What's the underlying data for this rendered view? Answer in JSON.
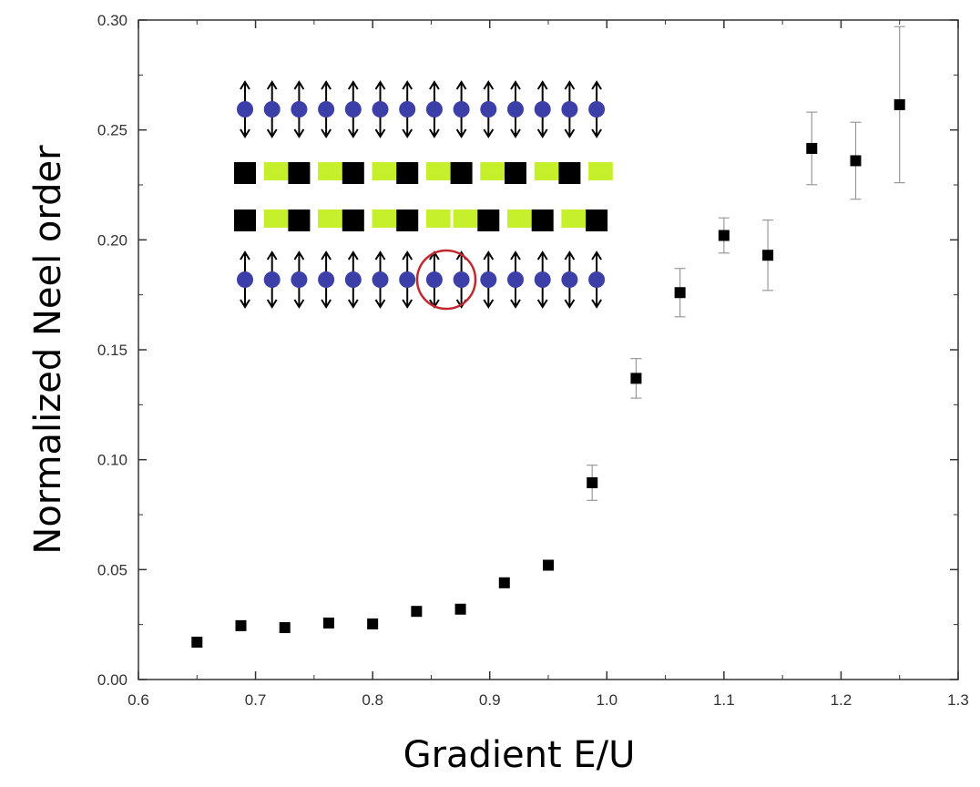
{
  "chart_data": {
    "type": "scatter",
    "x_label": "Gradient E/U",
    "y_label": "Normalized Neel order",
    "x": [
      0.65,
      0.6875,
      0.725,
      0.7625,
      0.8,
      0.8375,
      0.875,
      0.9125,
      0.95,
      0.9875,
      1.025,
      1.0625,
      1.1,
      1.1375,
      1.175,
      1.2125,
      1.25
    ],
    "values": [
      0.017,
      0.0245,
      0.0236,
      0.0257,
      0.0253,
      0.031,
      0.032,
      0.044,
      0.052,
      0.0895,
      0.137,
      0.176,
      0.202,
      0.193,
      0.2416,
      0.236,
      0.2615
    ],
    "errors": [
      null,
      null,
      null,
      null,
      null,
      null,
      null,
      null,
      null,
      0.008,
      0.009,
      0.011,
      0.008,
      0.016,
      0.0165,
      0.0175,
      0.0355
    ],
    "color": "#000000",
    "xlim": [
      0.6,
      1.3
    ],
    "ylim": [
      0,
      0.3
    ],
    "xticks": [
      0.6,
      0.7,
      0.8,
      0.9,
      {
        "value": 1,
        "label": "1.0"
      },
      1.1,
      1.2,
      1.3
    ],
    "yticks": [
      {
        "value": 0,
        "label": "0.00"
      },
      0.05,
      {
        "value": 0.1,
        "label": "0.10"
      },
      0.15,
      {
        "value": 0.2,
        "label": "0.20"
      },
      0.25,
      {
        "value": 0.3,
        "label": "0.30"
      }
    ]
  }
}
